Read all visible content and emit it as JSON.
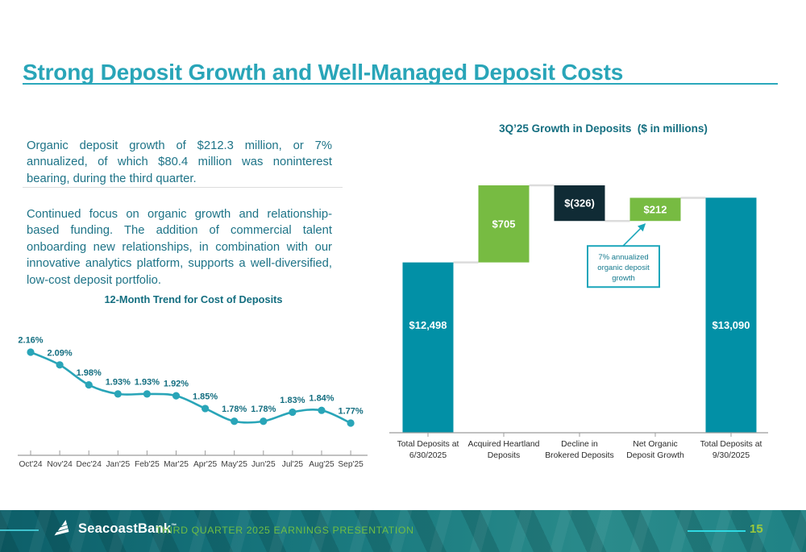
{
  "slide": {
    "title": "Strong Deposit Growth and Well-Managed Deposit Costs",
    "paragraphs": [
      "Organic deposit growth of $212.3 million, or 7% annualized, of which $80.4 million was noninterest bearing, during the third quarter.",
      "Continued focus on organic growth and relationship-based funding. The addition of commercial talent onboarding new relationships, in combination with our innovative analytics platform, supports a well-diversified, low-cost deposit portfolio."
    ]
  },
  "footer": {
    "brand": "SeacoastBank",
    "brand_mark": "™",
    "presentation_title": "THIRD QUARTER 2025 EARNINGS PRESENTATION",
    "page_number": "15"
  },
  "colors": {
    "accent_teal": "#29A5B8",
    "heading_teal": "#146E80",
    "body_teal": "#1D7387",
    "bar_teal": "#0290A6",
    "bar_green": "#77BB42",
    "bar_dark": "#102B35",
    "connector_gray": "#DCDCDC",
    "axis_gray": "#9C9C9C",
    "callout_teal": "#1BA6BA",
    "callout_text": "#157A8E",
    "tick_label": "#3C3C3C",
    "category_label": "#2B2B2B",
    "footer_green": "#6FBE44",
    "page_green": "#9CC93C"
  },
  "chart_data": [
    {
      "type": "line",
      "title": "12-Month Trend for Cost of Deposits",
      "x": [
        "Oct'24",
        "Nov'24",
        "Dec'24",
        "Jan'25",
        "Feb'25",
        "Mar'25",
        "Apr'25",
        "May'25",
        "Jun'25",
        "Jul'25",
        "Aug'25",
        "Sep'25"
      ],
      "values": [
        2.16,
        2.09,
        1.98,
        1.93,
        1.93,
        1.92,
        1.85,
        1.78,
        1.78,
        1.83,
        1.84,
        1.77
      ],
      "labels": [
        "2.16%",
        "2.09%",
        "1.98%",
        "1.93%",
        "1.93%",
        "1.92%",
        "1.85%",
        "1.78%",
        "1.78%",
        "1.83%",
        "1.84%",
        "1.77%"
      ],
      "xlabel": "",
      "ylabel": "",
      "ylim": [
        1.59,
        2.25
      ],
      "grid": false,
      "legend": false,
      "marker": "circle",
      "smooth": true
    },
    {
      "type": "bar",
      "subtype": "waterfall",
      "title": "3Q’25 Growth in Deposits  ($ in millions)",
      "categories": [
        [
          "Total Deposits at",
          "6/30/2025"
        ],
        [
          "Acquired Heartland",
          "Deposits"
        ],
        [
          "Decline in",
          "Brokered Deposits"
        ],
        [
          "Net Organic",
          "Deposit Growth"
        ],
        [
          "Total Deposits at",
          "9/30/2025"
        ]
      ],
      "bars": [
        {
          "display": "$12,498",
          "value": 12498,
          "role": "total"
        },
        {
          "display": "$705",
          "value": 705,
          "role": "increase"
        },
        {
          "display": "$(326)",
          "value": -326,
          "role": "decrease"
        },
        {
          "display": "$212",
          "value": 212,
          "role": "increase"
        },
        {
          "display": "$13,090",
          "value": 13090,
          "role": "total"
        }
      ],
      "baseline_value": 10940,
      "grid": false,
      "legend": false,
      "annotation": {
        "text": "7% annualized organic deposit growth",
        "lines": [
          "7% annualized",
          "organic deposit",
          "growth"
        ],
        "points_to": "Net Organic Deposit Growth"
      }
    }
  ]
}
